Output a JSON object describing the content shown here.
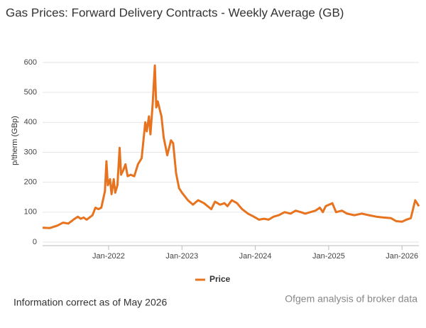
{
  "chart_data": {
    "type": "line",
    "title": "Gas Prices: Forward Delivery Contracts - Weekly Average (GB)",
    "y_label": "p/therm (GBp)",
    "footnote": "Information correct as of May 2026",
    "source": "Ofgem analysis of broker data",
    "legend": "bottom",
    "grid": true,
    "x": [
      2021.1,
      2021.2,
      2021.3,
      2021.38,
      2021.45,
      2021.52,
      2021.58,
      2021.62,
      2021.66,
      2021.7,
      2021.78,
      2021.82,
      2021.86,
      2021.9,
      2021.95,
      2021.97,
      2021.99,
      2022.02,
      2022.04,
      2022.07,
      2022.09,
      2022.12,
      2022.15,
      2022.17,
      2022.2,
      2022.23,
      2022.26,
      2022.3,
      2022.35,
      2022.4,
      2022.45,
      2022.5,
      2022.52,
      2022.55,
      2022.57,
      2022.6,
      2022.63,
      2022.65,
      2022.67,
      2022.7,
      2022.72,
      2022.75,
      2022.8,
      2022.85,
      2022.88,
      2022.92,
      2022.96,
      2023.0,
      2023.08,
      2023.15,
      2023.22,
      2023.3,
      2023.35,
      2023.4,
      2023.45,
      2023.52,
      2023.58,
      2023.62,
      2023.68,
      2023.75,
      2023.82,
      2023.9,
      2023.98,
      2024.05,
      2024.12,
      2024.18,
      2024.25,
      2024.32,
      2024.4,
      2024.48,
      2024.55,
      2024.62,
      2024.68,
      2024.75,
      2024.82,
      2024.88,
      2024.92,
      2024.96,
      2025.05,
      2025.1,
      2025.18,
      2025.25,
      2025.35,
      2025.45,
      2025.55,
      2025.65,
      2025.75,
      2025.85,
      2025.92,
      2026.0,
      2026.06,
      2026.12,
      2026.18,
      2026.23
    ],
    "series": [
      {
        "name": "Price",
        "color": "#e8731f",
        "values": [
          48,
          47,
          55,
          65,
          62,
          75,
          85,
          78,
          82,
          75,
          90,
          115,
          110,
          115,
          170,
          270,
          190,
          210,
          160,
          210,
          165,
          190,
          315,
          225,
          240,
          260,
          220,
          225,
          220,
          260,
          280,
          400,
          370,
          420,
          360,
          460,
          590,
          450,
          470,
          440,
          420,
          350,
          290,
          340,
          330,
          230,
          180,
          165,
          140,
          125,
          140,
          130,
          120,
          110,
          135,
          125,
          130,
          120,
          140,
          130,
          110,
          95,
          85,
          75,
          78,
          75,
          85,
          90,
          100,
          95,
          105,
          100,
          95,
          100,
          105,
          115,
          100,
          120,
          130,
          100,
          105,
          95,
          90,
          95,
          90,
          85,
          82,
          80,
          70,
          68,
          75,
          80,
          140,
          120
        ]
      }
    ],
    "xlim": [
      2021.1,
      2026.23
    ],
    "xticks": [
      {
        "value": 2022,
        "label": "Jan-2022"
      },
      {
        "value": 2023,
        "label": "Jan-2023"
      },
      {
        "value": 2024,
        "label": "Jan-2024"
      },
      {
        "value": 2025,
        "label": "Jan-2025"
      },
      {
        "value": 2026,
        "label": "Jan-2026"
      }
    ],
    "ylim": [
      0,
      600
    ],
    "yticks": [
      0,
      100,
      200,
      300,
      400,
      500,
      600
    ]
  }
}
